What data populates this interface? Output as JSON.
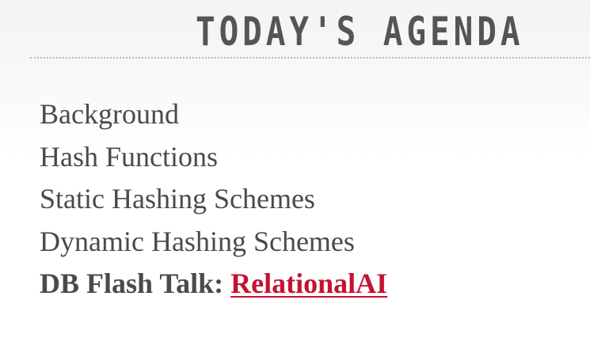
{
  "slide": {
    "title": "TODAY'S AGENDA",
    "items": [
      {
        "label": "Background"
      },
      {
        "label": "Hash Functions"
      },
      {
        "label": "Static Hashing Schemes"
      },
      {
        "label": "Dynamic Hashing Schemes"
      }
    ],
    "flash_talk": {
      "prefix": "DB Flash Talk:",
      "link_text": "RelationalAI"
    }
  },
  "colors": {
    "text": "#4a4a4a",
    "title": "#555555",
    "link": "#c41230",
    "rule": "#b8b8b8"
  }
}
